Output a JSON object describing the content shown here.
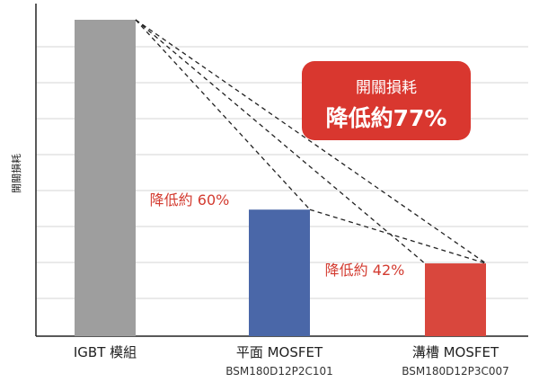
{
  "chart_data": {
    "type": "bar",
    "title": "",
    "xlabel": "",
    "ylabel": "開關損耗",
    "ylim": [
      0,
      100
    ],
    "grid": true,
    "categories": [
      "IGBT 模組",
      "平面 MOSFET",
      "溝槽 MOSFET"
    ],
    "subcategories": [
      "",
      "BSM180D12P2C101",
      "BSM180D12P3C007"
    ],
    "values": [
      100,
      40,
      23
    ],
    "bar_colors": [
      "#9e9e9e",
      "#4a67a8",
      "#d9473d"
    ],
    "annotations": [
      {
        "text": "降低約 60%",
        "bar": 1
      },
      {
        "text": "降低約 42%",
        "bar": 2
      }
    ],
    "callout": {
      "line1": "開關損耗",
      "line2": "降低約77%",
      "color": "#d9372f"
    }
  }
}
